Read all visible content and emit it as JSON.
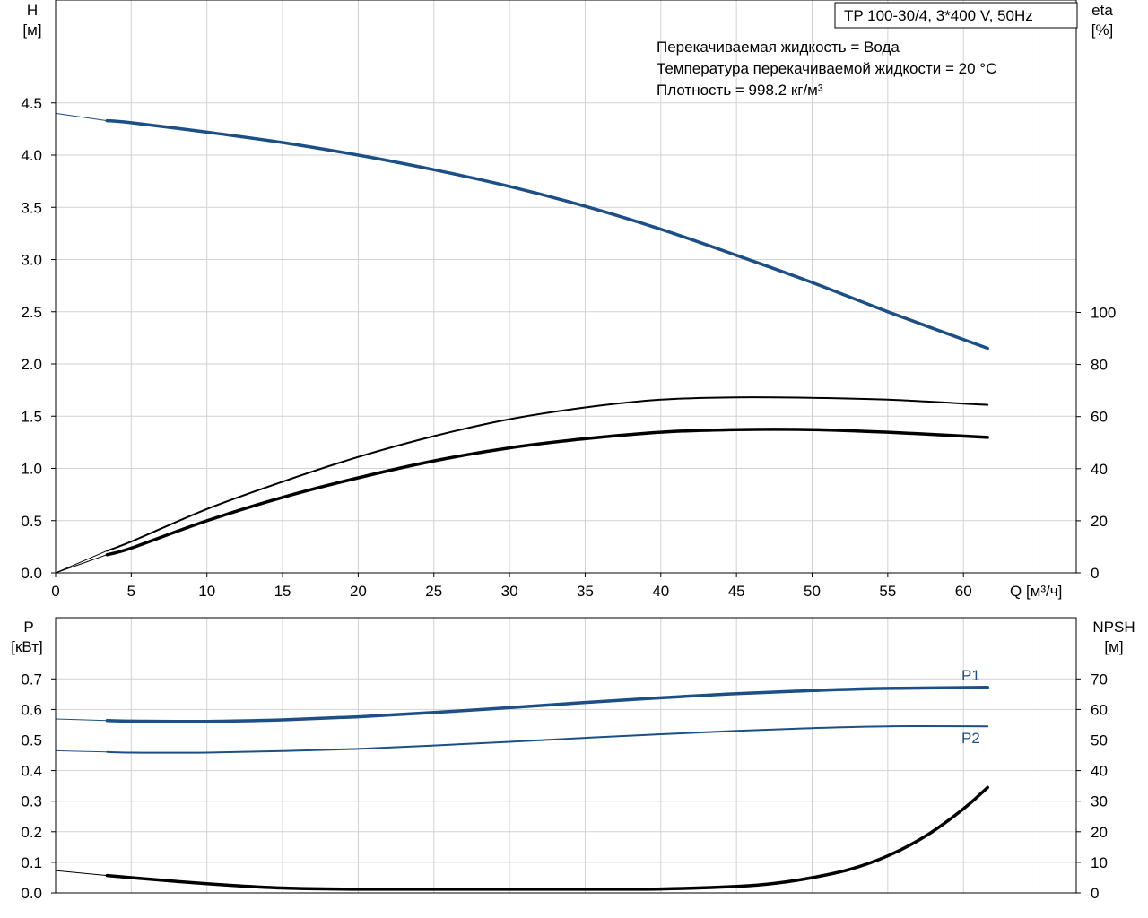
{
  "colors": {
    "blue": "#1b4f86",
    "black": "#000000",
    "grid": "#d2d2d2",
    "background": "#ffffff"
  },
  "pump": {
    "title": "TP 100-30/4, 3*400 V, 50Hz",
    "info": [
      "Перекачиваемая жидкость = Вода",
      "Температура перекачиваемой жидкости = 20 °C",
      "Плотность = 998.2 кг/м³"
    ]
  },
  "chart_data": [
    {
      "type": "line",
      "id": "head-efficiency",
      "x_axis": {
        "label": "Q [м³/ч]",
        "range": [
          0,
          67
        ],
        "ticks": [
          0,
          5,
          10,
          15,
          20,
          25,
          30,
          35,
          40,
          45,
          50,
          55,
          60
        ],
        "grid_step": 5
      },
      "y_left": {
        "label_top": "H",
        "label_unit": "[м]",
        "range": [
          0,
          4.5
        ],
        "ticks": [
          "0.0",
          "0.5",
          "1.0",
          "1.5",
          "2.0",
          "2.5",
          "3.0",
          "3.5",
          "4.0",
          "4.5"
        ]
      },
      "y_right": {
        "label_top": "eta",
        "label_unit": "[%]",
        "range": [
          0,
          100
        ],
        "ticks": [
          "0",
          "20",
          "40",
          "60",
          "80",
          "100"
        ]
      },
      "grid": true,
      "series": [
        {
          "axis": "left",
          "color": "#1b4f86",
          "width": 3.5,
          "x": [
            3.4,
            5,
            10,
            15,
            20,
            25,
            30,
            35,
            40,
            45,
            50,
            55,
            61.6
          ],
          "y": [
            4.33,
            4.31,
            4.22,
            4.12,
            4.0,
            3.86,
            3.7,
            3.51,
            3.29,
            3.04,
            2.78,
            2.5,
            2.15
          ],
          "extension": {
            "x": [
              0,
              3.4
            ],
            "y": [
              4.4,
              4.33
            ]
          }
        },
        {
          "axis": "right",
          "color": "#000000",
          "width": 2,
          "x": [
            3.4,
            5,
            10,
            15,
            20,
            25,
            30,
            35,
            40,
            45,
            50,
            55,
            61.6
          ],
          "y": [
            8.5,
            12,
            24.5,
            35,
            44.5,
            52.5,
            59,
            63.5,
            66.5,
            67.4,
            67.2,
            66.5,
            64.5
          ],
          "extension": {
            "x": [
              0,
              3.4
            ],
            "y": [
              0,
              8.5
            ]
          }
        },
        {
          "axis": "right",
          "color": "#000000",
          "width": 3.5,
          "x": [
            3.4,
            5,
            10,
            15,
            20,
            25,
            30,
            35,
            40,
            45,
            50,
            55,
            61.6
          ],
          "y": [
            7,
            9.5,
            20,
            29,
            36.5,
            43,
            48,
            51.5,
            54,
            55,
            55,
            54,
            52
          ],
          "extension": {
            "x": [
              0,
              3.4
            ],
            "y": [
              0,
              7
            ]
          }
        }
      ]
    },
    {
      "type": "line",
      "id": "power-npsh",
      "x_axis": {
        "range": [
          0,
          67
        ],
        "grid_step": 5
      },
      "y_left": {
        "label_top": "P",
        "label_unit": "[кВт]",
        "range": [
          0,
          0.8
        ],
        "ticks": [
          "0.0",
          "0.1",
          "0.2",
          "0.3",
          "0.4",
          "0.5",
          "0.6",
          "0.7"
        ]
      },
      "y_right": {
        "label_top": "NPSH",
        "label_unit": "[м]",
        "range": [
          0,
          80
        ],
        "ticks": [
          "0",
          "10",
          "20",
          "30",
          "40",
          "50",
          "60",
          "70"
        ]
      },
      "grid": true,
      "series": [
        {
          "name": "P1",
          "axis": "left",
          "color": "#1b4f86",
          "width": 3.5,
          "x": [
            3.4,
            5,
            10,
            15,
            20,
            25,
            30,
            35,
            40,
            45,
            50,
            55,
            61.6
          ],
          "y": [
            0.564,
            0.562,
            0.561,
            0.566,
            0.576,
            0.59,
            0.606,
            0.623,
            0.638,
            0.652,
            0.662,
            0.669,
            0.672
          ],
          "extension": {
            "x": [
              0,
              3.4
            ],
            "y": [
              0.569,
              0.564
            ]
          }
        },
        {
          "name": "P2",
          "axis": "left",
          "color": "#1b4f86",
          "width": 2,
          "x": [
            3.4,
            5,
            10,
            15,
            20,
            25,
            30,
            35,
            40,
            45,
            50,
            55,
            61.6
          ],
          "y": [
            0.461,
            0.459,
            0.459,
            0.464,
            0.471,
            0.482,
            0.494,
            0.507,
            0.519,
            0.53,
            0.539,
            0.545,
            0.545
          ],
          "extension": {
            "x": [
              0,
              3.4
            ],
            "y": [
              0.465,
              0.461
            ]
          }
        },
        {
          "axis": "right",
          "color": "#000000",
          "width": 3.5,
          "x": [
            3.4,
            5,
            10,
            15,
            20,
            25,
            30,
            35,
            40,
            45,
            47.5,
            50,
            52.5,
            55,
            57.5,
            60,
            61.6
          ],
          "y": [
            5.7,
            5,
            3,
            1.6,
            1.2,
            1.2,
            1.2,
            1.2,
            1.3,
            2.1,
            3.1,
            5,
            7.7,
            12.1,
            18.6,
            27.5,
            34.5
          ],
          "extension": {
            "x": [
              0,
              3.4
            ],
            "y": [
              7.3,
              5.7
            ]
          }
        }
      ]
    }
  ]
}
